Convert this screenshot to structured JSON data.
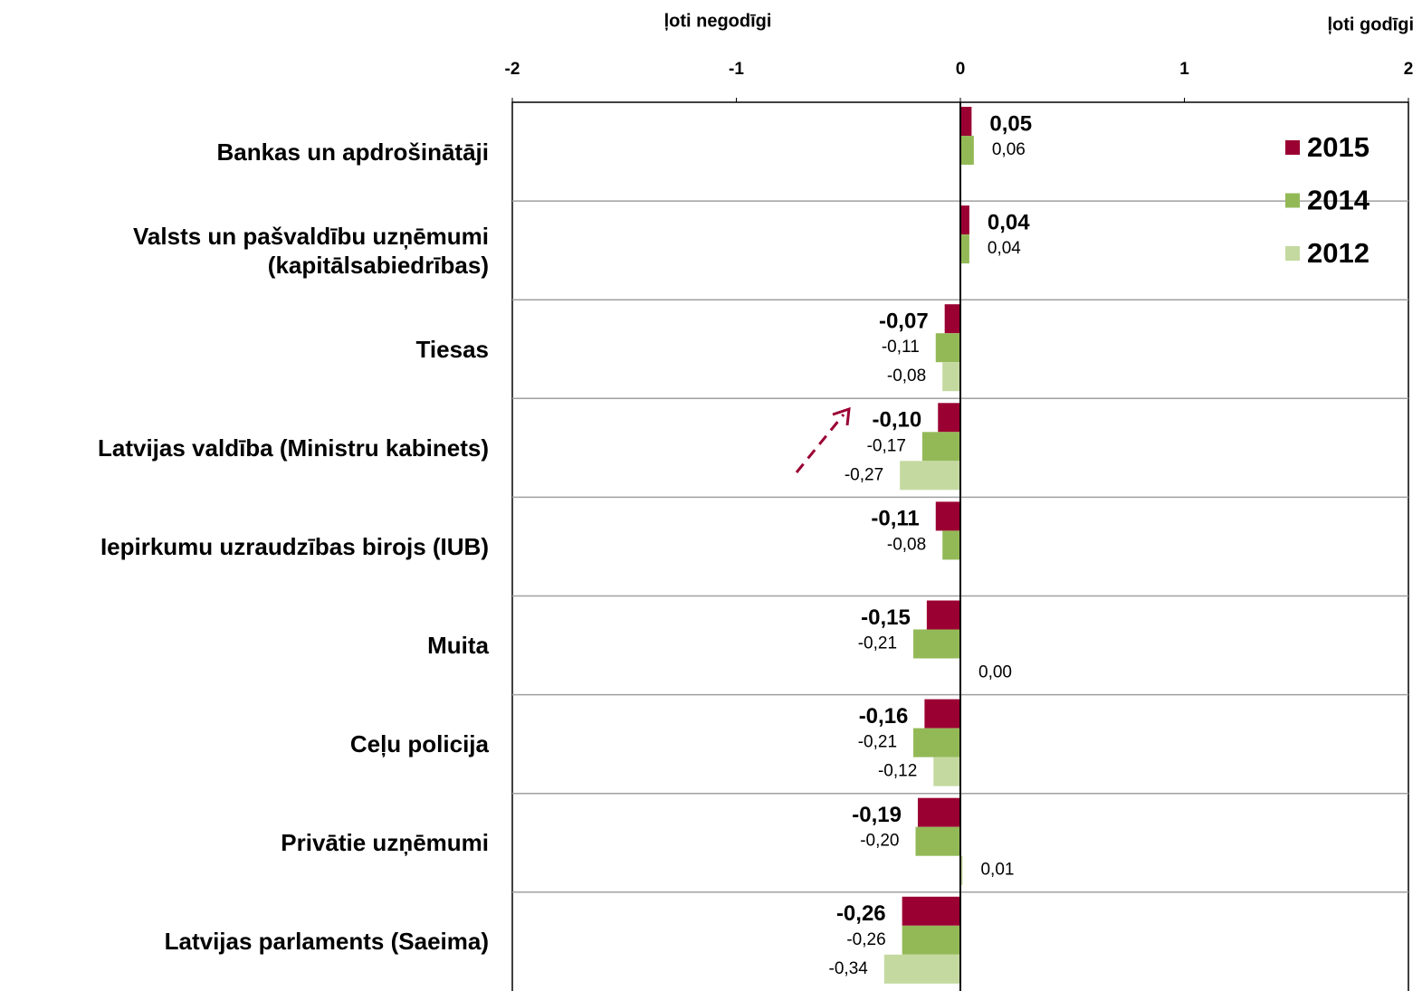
{
  "chart_data": {
    "type": "hbar",
    "axis_labels": [
      "ļoti negodīgi",
      "ļoti godīgi"
    ],
    "categories": [
      "Bankas un apdrošinātāji",
      "Valsts un pašvaldību uzņēmumi\n(kapitālsabiedrības)",
      "Tiesas",
      "Latvijas valdība (Ministru kabinets)",
      "Iepirkumu uzraudzības birojs (IUB)",
      "Muita",
      "Ceļu policija",
      "Privātie uzņēmumi",
      "Latvijas parlaments (Saeima)"
    ],
    "series": [
      {
        "name": "2015",
        "color": "#9b0033",
        "values": [
          0.05,
          0.04,
          -0.07,
          -0.1,
          -0.11,
          -0.15,
          -0.16,
          -0.19,
          -0.26
        ],
        "value_labels": [
          "0,05",
          "0,04",
          "-0,07",
          "-0,10",
          "-0,11",
          "-0,15",
          "-0,16",
          "-0,19",
          "-0,26"
        ]
      },
      {
        "name": "2014",
        "color": "#93b957",
        "values": [
          0.06,
          0.04,
          -0.11,
          -0.17,
          -0.08,
          -0.21,
          -0.21,
          -0.2,
          -0.26
        ],
        "value_labels": [
          "0,06",
          "0,04",
          "-0,11",
          "-0,17",
          "-0,08",
          "-0,21",
          "-0,21",
          "-0,20",
          "-0,26"
        ]
      },
      {
        "name": "2012",
        "color": "#c4d9a0",
        "values": [
          null,
          null,
          -0.08,
          -0.27,
          null,
          0.0,
          -0.12,
          0.01,
          -0.34
        ],
        "value_labels": [
          null,
          null,
          "-0,08",
          "-0,27",
          null,
          "0,00",
          "-0,12",
          "0,01",
          "-0,34"
        ]
      }
    ],
    "xlim": [
      -2,
      2
    ],
    "xticks": [
      -2,
      -1,
      0,
      1,
      2
    ],
    "legend": "top-right"
  }
}
